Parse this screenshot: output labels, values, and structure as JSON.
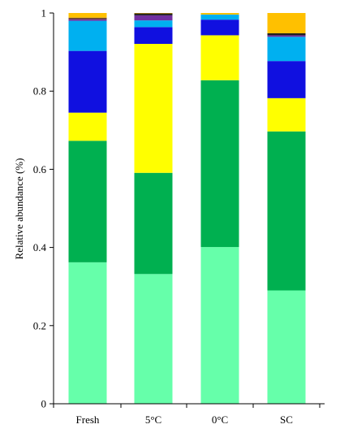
{
  "chart_data": {
    "type": "bar",
    "stacked": true,
    "categories": [
      "Fresh",
      "5°C",
      "0°C",
      "SC"
    ],
    "ylabel": "Relative abundance (%)",
    "xlabel": "",
    "title": "",
    "ylim": [
      0,
      1
    ],
    "yticks": [
      "0",
      "0.2",
      "0.4",
      "0.6",
      "0.8",
      "1"
    ],
    "ytick_values": [
      0,
      0.2,
      0.4,
      0.6,
      0.8,
      1
    ],
    "grid": false,
    "legend": "none",
    "series": [
      {
        "color": "#66ffaa",
        "values": [
          0.362,
          0.332,
          0.401,
          0.29
        ]
      },
      {
        "color": "#00b050",
        "values": [
          0.311,
          0.259,
          0.427,
          0.407
        ]
      },
      {
        "color": "#ffff00",
        "values": [
          0.072,
          0.33,
          0.115,
          0.085
        ]
      },
      {
        "color": "#1010e0",
        "values": [
          0.158,
          0.043,
          0.04,
          0.095
        ]
      },
      {
        "color": "#00b0f0",
        "values": [
          0.077,
          0.017,
          0.013,
          0.062
        ]
      },
      {
        "color": "#7030a0",
        "values": [
          0.004,
          0.013,
          0.0,
          0.004
        ]
      },
      {
        "color": "#6b4226",
        "values": [
          0.004,
          0.0,
          0.0,
          0.0
        ]
      },
      {
        "color": "#1f1f1f",
        "values": [
          0.0,
          0.005,
          0.0,
          0.005
        ]
      },
      {
        "color": "#ffc000",
        "values": [
          0.012,
          0.001,
          0.004,
          0.052
        ]
      }
    ]
  }
}
